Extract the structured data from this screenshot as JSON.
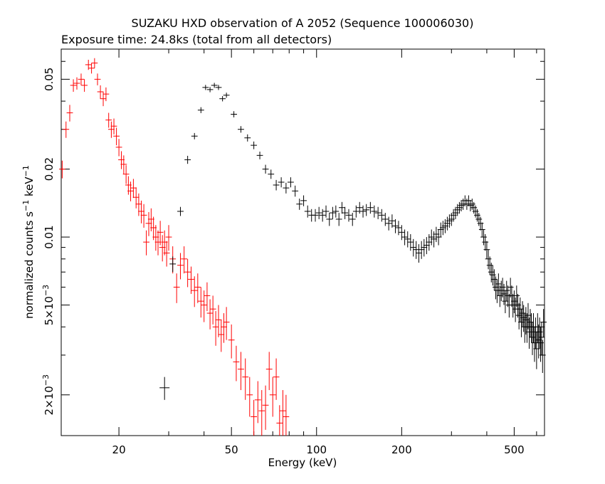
{
  "chart_data": {
    "type": "scatter",
    "title": "SUZAKU HXD observation of A 2052 (Sequence 100006030)",
    "subtitle": "Exposure time: 24.8ks (total from all detectors)",
    "xlabel": "Energy (keV)",
    "ylabel_main": "normalized counts s",
    "ylabel_sup1": "−1",
    "ylabel_mid": " keV",
    "ylabel_sup2": "−1",
    "xscale": "log",
    "yscale": "log",
    "xlim": [
      12.5,
      640
    ],
    "ylim": [
      0.00132,
      0.068
    ],
    "grid": false,
    "xticks": [
      {
        "v": 20,
        "label": "20"
      },
      {
        "v": 50,
        "label": "50"
      },
      {
        "v": 100,
        "label": "100"
      },
      {
        "v": 200,
        "label": "200"
      },
      {
        "v": 500,
        "label": "500"
      }
    ],
    "yticks": [
      {
        "v": 0.002,
        "mant": "2×10",
        "exp": "−3"
      },
      {
        "v": 0.005,
        "mant": "5×10",
        "exp": "−3"
      },
      {
        "v": 0.01,
        "mant": "0.01",
        "exp": ""
      },
      {
        "v": 0.02,
        "mant": "0.02",
        "exp": ""
      },
      {
        "v": 0.05,
        "mant": "0.05",
        "exp": ""
      }
    ],
    "series": [
      {
        "color": "#ff0000",
        "points": [
          [
            12.6,
            0.02,
            0.0018
          ],
          [
            13.0,
            0.03,
            0.0025
          ],
          [
            13.4,
            0.0355,
            0.003
          ],
          [
            13.8,
            0.047,
            0.003
          ],
          [
            14.2,
            0.048,
            0.003
          ],
          [
            14.7,
            0.05,
            0.003
          ],
          [
            15.1,
            0.047,
            0.003
          ],
          [
            15.6,
            0.058,
            0.003
          ],
          [
            16.0,
            0.056,
            0.003
          ],
          [
            16.4,
            0.059,
            0.003
          ],
          [
            16.8,
            0.05,
            0.003
          ],
          [
            17.2,
            0.044,
            0.003
          ],
          [
            17.6,
            0.041,
            0.003
          ],
          [
            18.0,
            0.043,
            0.003
          ],
          [
            18.4,
            0.033,
            0.0025
          ],
          [
            18.8,
            0.03,
            0.0025
          ],
          [
            19.2,
            0.031,
            0.0025
          ],
          [
            19.6,
            0.028,
            0.0025
          ],
          [
            20.0,
            0.025,
            0.0022
          ],
          [
            20.4,
            0.022,
            0.002
          ],
          [
            20.8,
            0.021,
            0.002
          ],
          [
            21.2,
            0.019,
            0.0018
          ],
          [
            21.6,
            0.017,
            0.0016
          ],
          [
            22.0,
            0.016,
            0.0016
          ],
          [
            22.5,
            0.0165,
            0.0016
          ],
          [
            23.0,
            0.015,
            0.0016
          ],
          [
            23.5,
            0.014,
            0.0016
          ],
          [
            24.0,
            0.013,
            0.0015
          ],
          [
            24.5,
            0.0125,
            0.0015
          ],
          [
            25.0,
            0.0095,
            0.0012
          ],
          [
            25.5,
            0.0115,
            0.0014
          ],
          [
            26.0,
            0.012,
            0.0014
          ],
          [
            26.5,
            0.011,
            0.0013
          ],
          [
            27.0,
            0.01,
            0.0013
          ],
          [
            27.5,
            0.0095,
            0.0012
          ],
          [
            28.0,
            0.0105,
            0.0013
          ],
          [
            28.5,
            0.009,
            0.0012
          ],
          [
            29.0,
            0.0095,
            0.0012
          ],
          [
            29.5,
            0.0085,
            0.0011
          ],
          [
            30.0,
            0.01,
            0.0013
          ],
          [
            31.0,
            0.008,
            0.0011
          ],
          [
            32.0,
            0.006,
            0.0009
          ],
          [
            33.0,
            0.0075,
            0.001
          ],
          [
            34.0,
            0.008,
            0.0011
          ],
          [
            35.0,
            0.007,
            0.001
          ],
          [
            36.0,
            0.0065,
            0.0009
          ],
          [
            37.0,
            0.0058,
            0.0009
          ],
          [
            38.0,
            0.006,
            0.0009
          ],
          [
            39.0,
            0.0052,
            0.0008
          ],
          [
            40.0,
            0.005,
            0.0008
          ],
          [
            41.0,
            0.0055,
            0.0008
          ],
          [
            42.0,
            0.0046,
            0.0007
          ],
          [
            43.0,
            0.0048,
            0.0007
          ],
          [
            44.0,
            0.004,
            0.0007
          ],
          [
            45.0,
            0.0043,
            0.0007
          ],
          [
            46.0,
            0.0037,
            0.0006
          ],
          [
            47.0,
            0.004,
            0.0006
          ],
          [
            48.0,
            0.0042,
            0.0007
          ],
          [
            50.0,
            0.0035,
            0.0006
          ],
          [
            52.0,
            0.0028,
            0.0005
          ],
          [
            54.0,
            0.0026,
            0.0005
          ],
          [
            56.0,
            0.0024,
            0.0005
          ],
          [
            58.0,
            0.002,
            0.0004
          ],
          [
            60.0,
            0.0016,
            0.0003
          ],
          [
            62.0,
            0.0019,
            0.0004
          ],
          [
            64.0,
            0.0017,
            0.0004
          ],
          [
            66.0,
            0.0018,
            0.0004
          ],
          [
            68.0,
            0.0026,
            0.0005
          ],
          [
            70.0,
            0.002,
            0.0004
          ],
          [
            72.0,
            0.0024,
            0.0005
          ],
          [
            74.0,
            0.0015,
            0.0003
          ],
          [
            76.0,
            0.0017,
            0.0004
          ],
          [
            78.0,
            0.0016,
            0.0004
          ]
        ]
      },
      {
        "color": "#000000",
        "points": [
          [
            31.0,
            0.0076,
            0.0006
          ],
          [
            33.0,
            0.013,
            0.0006
          ],
          [
            35.0,
            0.022,
            0.0009
          ],
          [
            37.0,
            0.028,
            0.0009
          ],
          [
            39.0,
            0.0365,
            0.0011
          ],
          [
            40.5,
            0.046,
            0.0012
          ],
          [
            42.0,
            0.045,
            0.0012
          ],
          [
            43.5,
            0.047,
            0.0012
          ],
          [
            45.0,
            0.046,
            0.0012
          ],
          [
            46.5,
            0.041,
            0.0011
          ],
          [
            48.0,
            0.0425,
            0.0011
          ],
          [
            51.0,
            0.035,
            0.0011
          ],
          [
            54.0,
            0.03,
            0.001
          ],
          [
            57.0,
            0.0275,
            0.001
          ],
          [
            60.0,
            0.0255,
            0.001
          ],
          [
            63.0,
            0.023,
            0.0009
          ],
          [
            66.0,
            0.02,
            0.0009
          ],
          [
            69.0,
            0.019,
            0.0009
          ],
          [
            72.0,
            0.017,
            0.0009
          ],
          [
            75.0,
            0.0175,
            0.0009
          ],
          [
            78.0,
            0.0165,
            0.0009
          ],
          [
            81.0,
            0.0175,
            0.0009
          ],
          [
            84.0,
            0.016,
            0.0009
          ],
          [
            87.0,
            0.014,
            0.0008
          ],
          [
            90.0,
            0.0145,
            0.0008
          ],
          [
            93.0,
            0.013,
            0.0008
          ],
          [
            96.0,
            0.0125,
            0.0008
          ],
          [
            99.0,
            0.0125,
            0.0008
          ],
          [
            102.0,
            0.0128,
            0.0008
          ],
          [
            105.0,
            0.0125,
            0.0008
          ],
          [
            108.0,
            0.013,
            0.0008
          ],
          [
            111.0,
            0.012,
            0.0008
          ],
          [
            114.0,
            0.0128,
            0.0008
          ],
          [
            117.0,
            0.013,
            0.0008
          ],
          [
            120.0,
            0.012,
            0.0008
          ],
          [
            123.0,
            0.0135,
            0.0008
          ],
          [
            126.0,
            0.0128,
            0.0008
          ],
          [
            130.0,
            0.0125,
            0.0008
          ],
          [
            134.0,
            0.012,
            0.0008
          ],
          [
            138.0,
            0.013,
            0.0008
          ],
          [
            142.0,
            0.0135,
            0.0008
          ],
          [
            146.0,
            0.013,
            0.0008
          ],
          [
            150.0,
            0.0132,
            0.0008
          ],
          [
            155.0,
            0.0135,
            0.0008
          ],
          [
            160.0,
            0.013,
            0.0008
          ],
          [
            165.0,
            0.0128,
            0.0008
          ],
          [
            170.0,
            0.0125,
            0.0008
          ],
          [
            175.0,
            0.012,
            0.0008
          ],
          [
            180.0,
            0.0115,
            0.0008
          ],
          [
            185.0,
            0.0118,
            0.0008
          ],
          [
            190.0,
            0.0112,
            0.0008
          ],
          [
            195.0,
            0.011,
            0.0008
          ],
          [
            200.0,
            0.0105,
            0.0008
          ],
          [
            205.0,
            0.01,
            0.0008
          ],
          [
            210.0,
            0.0098,
            0.0008
          ],
          [
            215.0,
            0.0095,
            0.0008
          ],
          [
            220.0,
            0.009,
            0.0008
          ],
          [
            225.0,
            0.0088,
            0.0008
          ],
          [
            230.0,
            0.0085,
            0.0008
          ],
          [
            235.0,
            0.0088,
            0.0008
          ],
          [
            240.0,
            0.009,
            0.0008
          ],
          [
            245.0,
            0.0092,
            0.0008
          ],
          [
            250.0,
            0.0095,
            0.0008
          ],
          [
            255.0,
            0.01,
            0.0008
          ],
          [
            260.0,
            0.0098,
            0.0008
          ],
          [
            265.0,
            0.0103,
            0.0008
          ],
          [
            270.0,
            0.01,
            0.0008
          ],
          [
            275.0,
            0.0108,
            0.0008
          ],
          [
            280.0,
            0.011,
            0.0008
          ],
          [
            285.0,
            0.0112,
            0.0008
          ],
          [
            290.0,
            0.0115,
            0.0008
          ],
          [
            295.0,
            0.0118,
            0.0008
          ],
          [
            300.0,
            0.012,
            0.0008
          ],
          [
            305.0,
            0.0125,
            0.0008
          ],
          [
            310.0,
            0.0128,
            0.0008
          ],
          [
            315.0,
            0.0132,
            0.0008
          ],
          [
            320.0,
            0.0135,
            0.0008
          ],
          [
            325.0,
            0.0138,
            0.0008
          ],
          [
            330.0,
            0.014,
            0.0008
          ],
          [
            335.0,
            0.0145,
            0.0008
          ],
          [
            340.0,
            0.014,
            0.0008
          ],
          [
            345.0,
            0.0145,
            0.0008
          ],
          [
            350.0,
            0.0138,
            0.0008
          ],
          [
            355.0,
            0.014,
            0.0008
          ],
          [
            360.0,
            0.0135,
            0.0008
          ],
          [
            365.0,
            0.013,
            0.0008
          ],
          [
            370.0,
            0.0125,
            0.0008
          ],
          [
            375.0,
            0.012,
            0.0008
          ],
          [
            380.0,
            0.0115,
            0.0008
          ],
          [
            385.0,
            0.0108,
            0.0008
          ],
          [
            390.0,
            0.01,
            0.0008
          ],
          [
            395.0,
            0.0095,
            0.0008
          ],
          [
            400.0,
            0.0088,
            0.0008
          ],
          [
            405.0,
            0.008,
            0.0008
          ],
          [
            410.0,
            0.0075,
            0.0007
          ],
          [
            415.0,
            0.007,
            0.0007
          ],
          [
            420.0,
            0.0068,
            0.0007
          ],
          [
            425.0,
            0.0065,
            0.0007
          ],
          [
            430.0,
            0.006,
            0.0007
          ],
          [
            435.0,
            0.0058,
            0.0007
          ],
          [
            440.0,
            0.0062,
            0.0007
          ],
          [
            445.0,
            0.0055,
            0.0006
          ],
          [
            450.0,
            0.0058,
            0.0006
          ],
          [
            455.0,
            0.006,
            0.0006
          ],
          [
            460.0,
            0.0056,
            0.0006
          ],
          [
            465.0,
            0.0052,
            0.0006
          ],
          [
            470.0,
            0.0058,
            0.0006
          ],
          [
            475.0,
            0.0055,
            0.0006
          ],
          [
            480.0,
            0.005,
            0.0006
          ],
          [
            485.0,
            0.006,
            0.0006
          ],
          [
            490.0,
            0.0055,
            0.0006
          ],
          [
            495.0,
            0.005,
            0.0006
          ],
          [
            500.0,
            0.0052,
            0.0006
          ],
          [
            505.0,
            0.0048,
            0.0006
          ],
          [
            510.0,
            0.0055,
            0.0006
          ],
          [
            515.0,
            0.005,
            0.0006
          ],
          [
            520.0,
            0.0045,
            0.0006
          ],
          [
            525.0,
            0.0048,
            0.0006
          ],
          [
            530.0,
            0.0042,
            0.0006
          ],
          [
            535.0,
            0.0046,
            0.0006
          ],
          [
            540.0,
            0.0044,
            0.0006
          ],
          [
            545.0,
            0.004,
            0.0006
          ],
          [
            550.0,
            0.0043,
            0.0006
          ],
          [
            555.0,
            0.004,
            0.0006
          ],
          [
            560.0,
            0.0045,
            0.0006
          ],
          [
            565.0,
            0.0038,
            0.0006
          ],
          [
            570.0,
            0.0042,
            0.0006
          ],
          [
            575.0,
            0.004,
            0.0006
          ],
          [
            580.0,
            0.0036,
            0.0006
          ],
          [
            585.0,
            0.004,
            0.0006
          ],
          [
            590.0,
            0.0034,
            0.0006
          ],
          [
            595.0,
            0.0038,
            0.0006
          ],
          [
            600.0,
            0.0032,
            0.0006
          ],
          [
            605.0,
            0.004,
            0.0006
          ],
          [
            610.0,
            0.0035,
            0.0006
          ],
          [
            615.0,
            0.0038,
            0.0006
          ],
          [
            620.0,
            0.0034,
            0.0006
          ],
          [
            625.0,
            0.0036,
            0.0006
          ],
          [
            630.0,
            0.003,
            0.0005
          ],
          [
            635.0,
            0.0042,
            0.0006
          ]
        ],
        "outliers": [
          [
            29.0,
            0.00215,
            0.00025
          ]
        ]
      }
    ]
  }
}
